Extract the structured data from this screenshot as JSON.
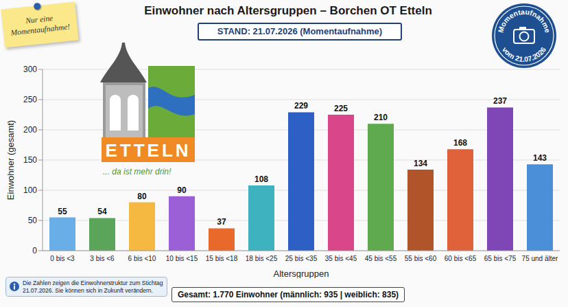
{
  "chart_data": {
    "type": "bar",
    "title": "Einwohner nach Altersgruppen – Borchen OT Etteln",
    "subtitle": "STAND: 21.07.2026 (Momentaufnahme)",
    "x_label": "Altersgruppen",
    "y_label": "Einwohner (gesamt)",
    "categories": [
      "0 bis <3",
      "3 bis <6",
      "6 bis <10",
      "10 bis <15",
      "15 bis <18",
      "18 bis <25",
      "25 bis <35",
      "35 bis <45",
      "45 bis <55",
      "55 bis <60",
      "60 bis <65",
      "65 bis <75",
      "75 und älter"
    ],
    "values": [
      55,
      54,
      80,
      90,
      37,
      108,
      229,
      225,
      210,
      134,
      168,
      237,
      143
    ],
    "colors": [
      "#6aaee8",
      "#5aa55a",
      "#f5b942",
      "#9b5fd6",
      "#e8692a",
      "#3fb2bf",
      "#2e5fc4",
      "#d9478a",
      "#5faa4e",
      "#b0542a",
      "#e0623a",
      "#7e47b5",
      "#4a8fd8"
    ],
    "ylim": [
      0,
      300
    ],
    "yticks": [
      0,
      50,
      100,
      150,
      200,
      250,
      300
    ],
    "grid": true,
    "data_labels": true,
    "annotations": {
      "sticky_note": "Nur eine Momentaufnahme!",
      "stamp_top": "Momentaufnahme",
      "stamp_bottom": "vom 21.07.2026",
      "logo_name": "ETTELN",
      "logo_slogan": "... da ist mehr drin!",
      "info": "Die Zahlen zeigen die Einwohnerstruktur zum Stichtag 21.07.2026. Sie können sich in Zukunft verändern.",
      "total": "Gesamt: 1.770 Einwohner (männlich: 935 | weiblich: 835)"
    }
  }
}
